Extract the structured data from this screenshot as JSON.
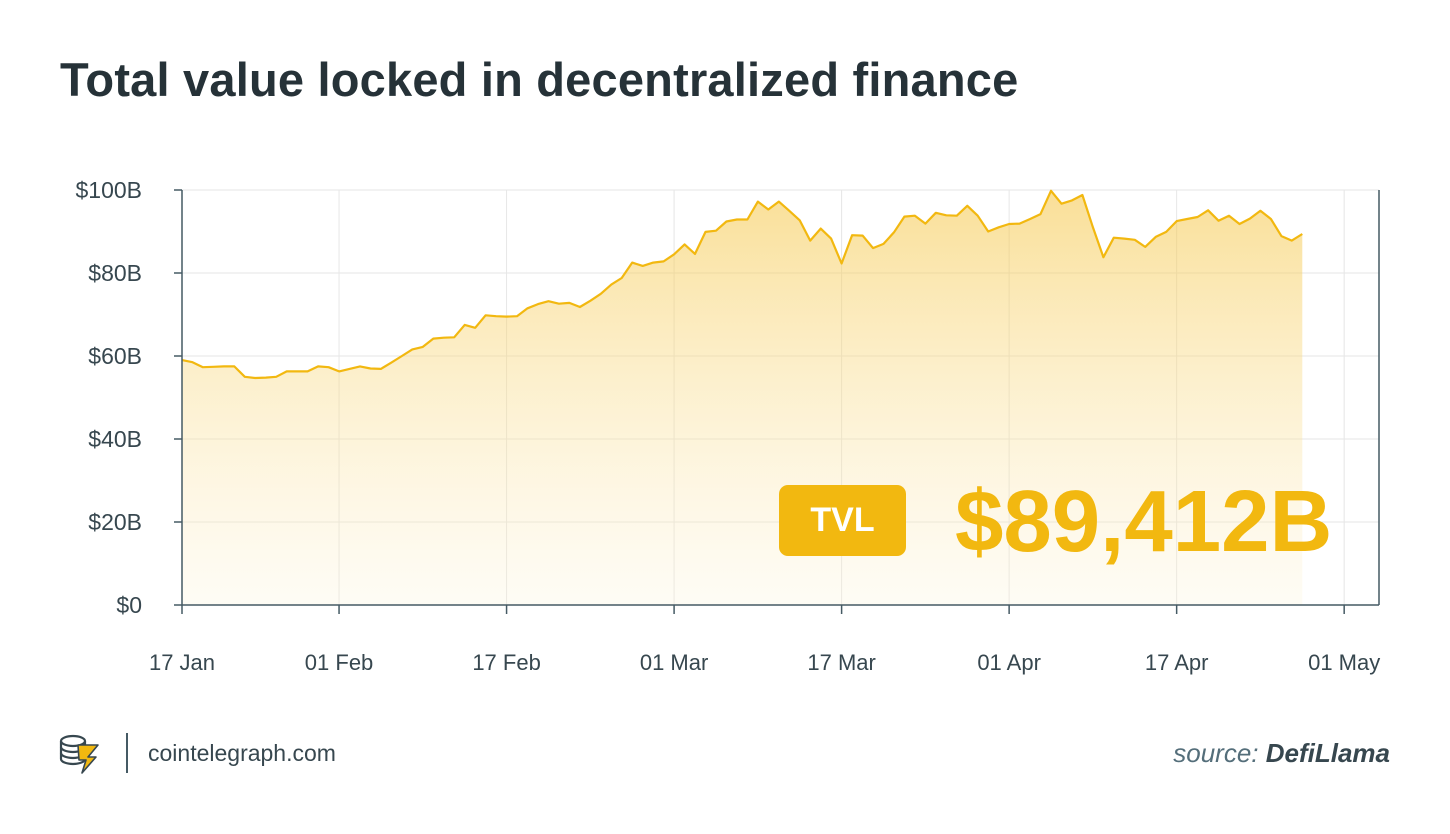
{
  "title": "Total value locked in decentralized finance",
  "badge": {
    "label": "TVL",
    "value": "$89,412B"
  },
  "footer": {
    "site": "cointelegraph.com",
    "source_prefix": "source:",
    "source_name": "DefiLlama",
    "logo_icon": "cointelegraph-coin-icon"
  },
  "colors": {
    "line": "#f2b810",
    "accent": "#f2b810",
    "text": "#263238"
  },
  "chart_data": {
    "type": "area",
    "title": "Total value locked in decentralized finance",
    "xlabel": "",
    "ylabel": "",
    "ylim": [
      0,
      100
    ],
    "y_ticks": [
      0,
      20,
      40,
      60,
      80,
      100
    ],
    "y_tick_labels": [
      "$0",
      "$20B",
      "$40B",
      "$60B",
      "$80B",
      "$100B"
    ],
    "x_tick_labels": [
      "17 Jan",
      "01 Feb",
      "17 Feb",
      "01 Mar",
      "17 Mar",
      "01 Apr",
      "17 Apr",
      "01 May"
    ],
    "x_tick_day_index": [
      0,
      15,
      31,
      47,
      63,
      79,
      95,
      111
    ],
    "grid": true,
    "series": [
      {
        "values": [
          59,
          58.5,
          57.3,
          57.4,
          57.5,
          57.5,
          55,
          54.7,
          54.8,
          55,
          56.3,
          56.3,
          56.3,
          57.5,
          57.3,
          56.3,
          56.9,
          57.5,
          57,
          56.9,
          58.4,
          60,
          61.6,
          62.2,
          64.2,
          64.4,
          64.5,
          67.5,
          66.8,
          69.8,
          69.6,
          69.5,
          69.6,
          71.5,
          72.5,
          73.2,
          72.6,
          72.8,
          71.8,
          73.3,
          75,
          77.2,
          78.8,
          82.5,
          81.7,
          82.5,
          82.8,
          84.5,
          86.9,
          84.6,
          89.9,
          90.2,
          92.4,
          92.9,
          92.9,
          97.2,
          95.3,
          97.2,
          95,
          92.7,
          87.8,
          90.7,
          88.3,
          82.3,
          89.1,
          89,
          86,
          87,
          89.8,
          93.6,
          93.8,
          91.9,
          94.5,
          93.9,
          93.8,
          96.2,
          93.8,
          90,
          91,
          91.8,
          91.9,
          93,
          94.2,
          99.8,
          96.7,
          97.5,
          98.8,
          91,
          83.8,
          88.5,
          88.3,
          88,
          86.3,
          88.7,
          89.9,
          92.5,
          93,
          93.5,
          95.1,
          92.6,
          93.8,
          91.8,
          93.1,
          95,
          93,
          88.9,
          87.8,
          89.4
        ]
      }
    ]
  }
}
